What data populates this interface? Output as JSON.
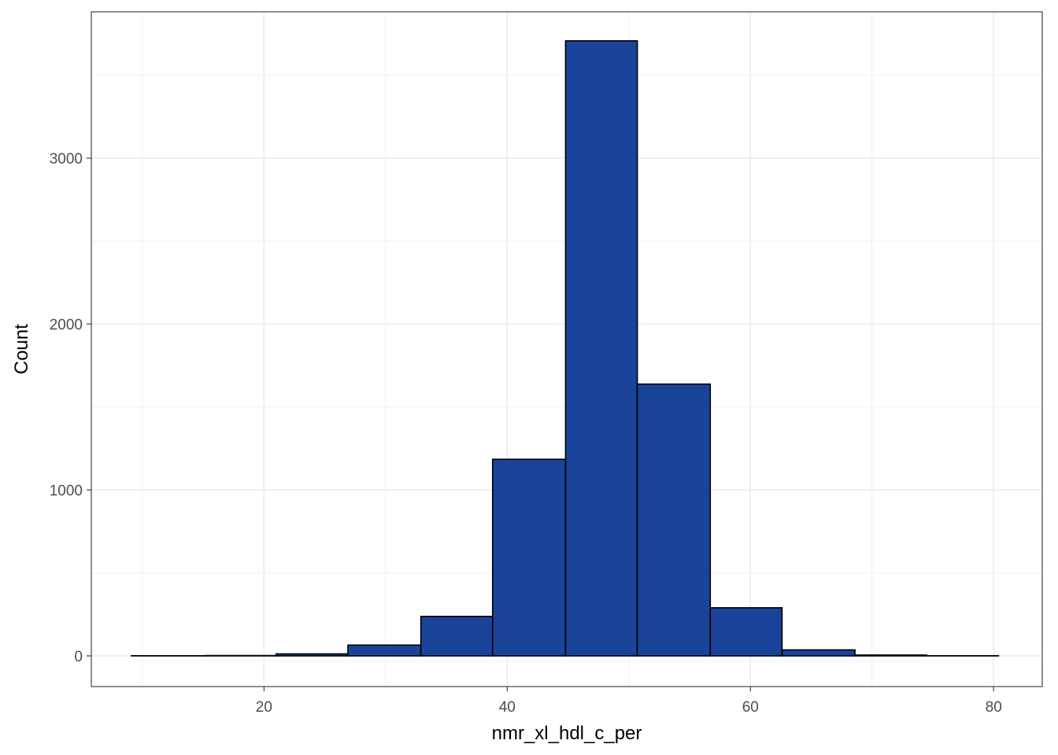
{
  "chart_data": {
    "type": "bar",
    "subtype": "histogram",
    "xlabel": "nmr_xl_hdl_c_per",
    "ylabel": "Count",
    "xlim": [
      5.8,
      84.0
    ],
    "ylim": [
      -185,
      3882
    ],
    "x_ticks": [
      20,
      40,
      60,
      80
    ],
    "y_ticks": [
      0,
      1000,
      2000,
      3000
    ],
    "x_tick_labels": [
      "20",
      "40",
      "60",
      "80"
    ],
    "y_tick_labels": [
      "0",
      "1000",
      "2000",
      "3000"
    ],
    "x_minor_ticks": [
      10,
      30,
      50,
      70
    ],
    "y_minor_ticks": [
      500,
      1500,
      2500,
      3500
    ],
    "grid": true,
    "bar_fill": "#1a4499",
    "bar_border": "#000000",
    "bins": [
      {
        "x_start": 9.1,
        "x_end": 15.1,
        "count": 1
      },
      {
        "x_start": 15.1,
        "x_end": 21.0,
        "count": 2
      },
      {
        "x_start": 21.0,
        "x_end": 26.9,
        "count": 12
      },
      {
        "x_start": 26.9,
        "x_end": 32.9,
        "count": 65
      },
      {
        "x_start": 32.9,
        "x_end": 38.8,
        "count": 238
      },
      {
        "x_start": 38.8,
        "x_end": 44.8,
        "count": 1185
      },
      {
        "x_start": 44.8,
        "x_end": 50.7,
        "count": 3707
      },
      {
        "x_start": 50.7,
        "x_end": 56.7,
        "count": 1638
      },
      {
        "x_start": 56.7,
        "x_end": 62.6,
        "count": 290
      },
      {
        "x_start": 62.6,
        "x_end": 68.6,
        "count": 36
      },
      {
        "x_start": 68.6,
        "x_end": 74.5,
        "count": 5
      },
      {
        "x_start": 74.5,
        "x_end": 80.4,
        "count": 1
      }
    ]
  }
}
